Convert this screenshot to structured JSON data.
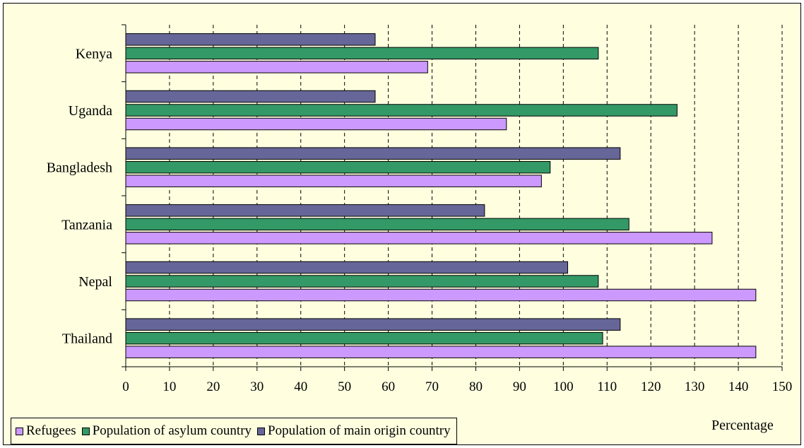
{
  "chart_data": {
    "type": "bar",
    "orientation": "horizontal",
    "categories": [
      "Thailand",
      "Nepal",
      "Tanzania",
      "Bangladesh",
      "Uganda",
      "Kenya"
    ],
    "series": [
      {
        "name": "Refugees",
        "color": "#CC99FF",
        "values": [
          144,
          144,
          134,
          95,
          87,
          69
        ]
      },
      {
        "name": "Population of asylum country",
        "color": "#339966",
        "values": [
          109,
          108,
          115,
          97,
          126,
          108
        ]
      },
      {
        "name": "Population of main origin country",
        "color": "#666699",
        "values": [
          113,
          101,
          82,
          113,
          57,
          57
        ]
      }
    ],
    "xlabel": "Percentage",
    "xlim": [
      0,
      150
    ],
    "xticks": [
      0,
      10,
      20,
      30,
      40,
      50,
      60,
      70,
      80,
      90,
      100,
      110,
      120,
      130,
      140,
      150
    ],
    "grid": "vertical dashed",
    "legend": "bottom-left",
    "background": "#FFFFE0"
  }
}
